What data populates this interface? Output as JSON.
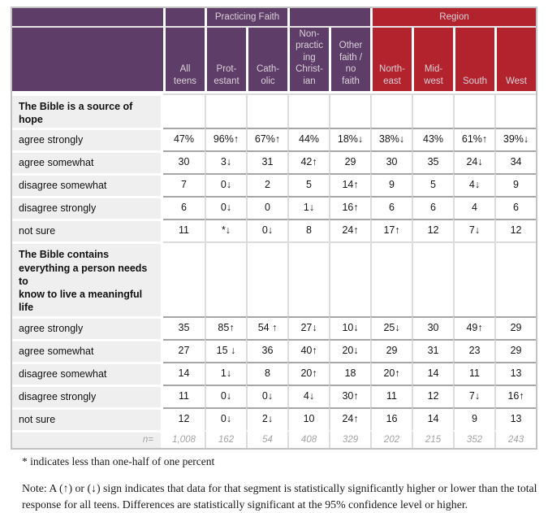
{
  "colors": {
    "purple": "#5f3d69",
    "red": "#b2232e",
    "label_bg": "#efefef",
    "grid_gray": "#a6a6a6",
    "grid_light": "#dcdcdc",
    "n_text": "#a3a3a3"
  },
  "table": {
    "groups": {
      "practicing_faith": "Practicing Faith",
      "region": "Region"
    },
    "columns": [
      {
        "label": "All\nteens",
        "group": "purple"
      },
      {
        "label": "Prot-\nestant",
        "group": "purple"
      },
      {
        "label": "Cath-\nolic",
        "group": "purple"
      },
      {
        "label": "Non-\npractic\ning\nChrist-\nian",
        "group": "purple"
      },
      {
        "label": "Other\nfaith /\nno\nfaith",
        "group": "purple"
      },
      {
        "label": "North-\neast",
        "group": "red"
      },
      {
        "label": "Mid-\nwest",
        "group": "red"
      },
      {
        "label": "South",
        "group": "red"
      },
      {
        "label": "West",
        "group": "red"
      }
    ],
    "sections": [
      {
        "title": "The Bible is a source of hope",
        "rows": [
          {
            "label": "agree strongly",
            "values": [
              "47%",
              "96%↑",
              "67%↑",
              "44%",
              "18%↓",
              "38%↓",
              "43%",
              "61%↑",
              "39%↓"
            ]
          },
          {
            "label": "agree somewhat",
            "values": [
              "30",
              "3↓",
              "31",
              "42↑",
              "29",
              "30",
              "35",
              "24↓",
              "34"
            ]
          },
          {
            "label": "disagree somewhat",
            "values": [
              "7",
              "0↓",
              "2",
              "5",
              "14↑",
              "9",
              "5",
              "4↓",
              "9"
            ]
          },
          {
            "label": "disagree strongly",
            "values": [
              "6",
              "0↓",
              "0",
              "1↓",
              "16↑",
              "6",
              "6",
              "4",
              "6"
            ]
          },
          {
            "label": "not sure",
            "values": [
              "11",
              "*↓",
              "0↓",
              "8",
              "24↑",
              "17↑",
              "12",
              "7↓",
              "12"
            ]
          }
        ]
      },
      {
        "title": "The Bible contains\neverything a person needs to\nknow to live a meaningful life",
        "rows": [
          {
            "label": "agree strongly",
            "values": [
              "35",
              "85↑",
              "54 ↑",
              "27↓",
              "10↓",
              "25↓",
              "30",
              "49↑",
              "29"
            ]
          },
          {
            "label": "agree somewhat",
            "values": [
              "27",
              "15 ↓",
              "36",
              "40↑",
              "20↓",
              "29",
              "31",
              "23",
              "29"
            ]
          },
          {
            "label": "disagree somewhat",
            "values": [
              "14",
              "1↓",
              "8",
              "20↑",
              "18",
              "20↑",
              "14",
              "11",
              "13"
            ]
          },
          {
            "label": "disagree strongly",
            "values": [
              "11",
              "0↓",
              "0↓",
              "4↓",
              "30↑",
              "11",
              "12",
              "7↓",
              "16↑"
            ]
          },
          {
            "label": "not sure",
            "values": [
              "12",
              "0↓",
              "2↓",
              "10",
              "24↑",
              "16",
              "14",
              "9",
              "13"
            ]
          }
        ]
      }
    ],
    "base": {
      "label": "n=",
      "values": [
        "1,008",
        "162",
        "54",
        "408",
        "329",
        "202",
        "215",
        "352",
        "243"
      ]
    }
  },
  "footnotes": {
    "asterisk": "* indicates less than one-half of one percent",
    "note": "Note: A (↑) or (↓) sign indicates that data for that segment is statistically significantly higher or lower than the total response for all teens. Differences are statistically significant at the 95% confidence level or higher."
  }
}
